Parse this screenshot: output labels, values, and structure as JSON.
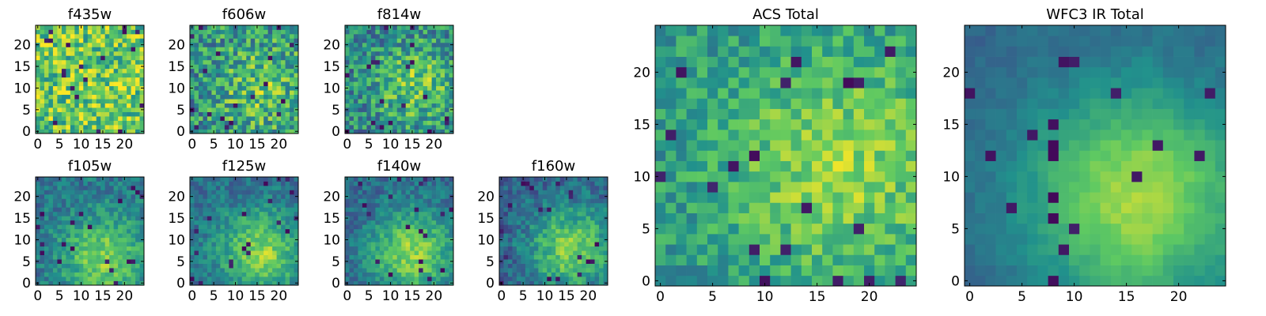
{
  "colormap": {
    "name": "viridis",
    "stops": [
      "#440154",
      "#3b528b",
      "#21918c",
      "#5ec962",
      "#fde725"
    ]
  },
  "chart_data": [
    {
      "type": "heatmap",
      "title": "f435w",
      "grid": false,
      "xlim": [
        -0.5,
        24.5
      ],
      "ylim": [
        -0.5,
        24.5
      ],
      "x_ticks": [
        "0",
        "5",
        "10",
        "15",
        "20"
      ],
      "y_ticks": [
        "0",
        "5",
        "10",
        "15",
        "20"
      ],
      "grid_size": 25,
      "seed": 11,
      "signal": 0.05,
      "noise": 0.55,
      "smooth": 0,
      "offset": 0.72,
      "center": [
        15,
        8
      ],
      "width": 9
    },
    {
      "type": "heatmap",
      "title": "f606w",
      "grid": false,
      "xlim": [
        -0.5,
        24.5
      ],
      "ylim": [
        -0.5,
        24.5
      ],
      "x_ticks": [
        "0",
        "5",
        "10",
        "15",
        "20"
      ],
      "y_ticks": [
        "0",
        "5",
        "10",
        "15",
        "20"
      ],
      "grid_size": 25,
      "seed": 23,
      "signal": 0.22,
      "noise": 0.55,
      "smooth": 0,
      "offset": 0.5,
      "center": [
        16,
        10
      ],
      "width": 8
    },
    {
      "type": "heatmap",
      "title": "f814w",
      "grid": false,
      "xlim": [
        -0.5,
        24.5
      ],
      "ylim": [
        -0.5,
        24.5
      ],
      "x_ticks": [
        "0",
        "5",
        "10",
        "15",
        "20"
      ],
      "y_ticks": [
        "0",
        "5",
        "10",
        "15",
        "20"
      ],
      "grid_size": 25,
      "seed": 37,
      "signal": 0.3,
      "noise": 0.5,
      "smooth": 0,
      "offset": 0.45,
      "center": [
        16,
        11
      ],
      "width": 7
    },
    {
      "type": "heatmap",
      "title": "f105w",
      "grid": false,
      "xlim": [
        -0.5,
        24.5
      ],
      "ylim": [
        -0.5,
        24.5
      ],
      "x_ticks": [
        "0",
        "5",
        "10",
        "15",
        "20"
      ],
      "y_ticks": [
        "0",
        "5",
        "10",
        "15",
        "20"
      ],
      "grid_size": 25,
      "seed": 41,
      "signal": 0.42,
      "noise": 0.38,
      "smooth": 0.3,
      "offset": 0.38,
      "center": [
        15,
        6
      ],
      "width": 7
    },
    {
      "type": "heatmap",
      "title": "f125w",
      "grid": false,
      "xlim": [
        -0.5,
        24.5
      ],
      "ylim": [
        -0.5,
        24.5
      ],
      "x_ticks": [
        "0",
        "5",
        "10",
        "15",
        "20"
      ],
      "y_ticks": [
        "0",
        "5",
        "10",
        "15",
        "20"
      ],
      "grid_size": 25,
      "seed": 53,
      "signal": 0.45,
      "noise": 0.36,
      "smooth": 0.3,
      "offset": 0.36,
      "center": [
        16,
        7
      ],
      "width": 7
    },
    {
      "type": "heatmap",
      "title": "f140w",
      "grid": false,
      "xlim": [
        -0.5,
        24.5
      ],
      "ylim": [
        -0.5,
        24.5
      ],
      "x_ticks": [
        "0",
        "5",
        "10",
        "15",
        "20"
      ],
      "y_ticks": [
        "0",
        "5",
        "10",
        "15",
        "20"
      ],
      "grid_size": 25,
      "seed": 67,
      "signal": 0.48,
      "noise": 0.35,
      "smooth": 0.3,
      "offset": 0.34,
      "center": [
        15,
        7
      ],
      "width": 7
    },
    {
      "type": "heatmap",
      "title": "f160w",
      "grid": false,
      "xlim": [
        -0.5,
        24.5
      ],
      "ylim": [
        -0.5,
        24.5
      ],
      "x_ticks": [
        "0",
        "5",
        "10",
        "15",
        "20"
      ],
      "y_ticks": [
        "0",
        "5",
        "10",
        "15",
        "20"
      ],
      "grid_size": 25,
      "seed": 79,
      "signal": 0.5,
      "noise": 0.38,
      "smooth": 0.3,
      "offset": 0.3,
      "center": [
        16,
        8
      ],
      "width": 7
    },
    {
      "type": "heatmap",
      "title": "ACS Total",
      "grid": false,
      "xlim": [
        -0.5,
        24.5
      ],
      "ylim": [
        -0.5,
        24.5
      ],
      "x_ticks": [
        "0",
        "5",
        "10",
        "15",
        "20"
      ],
      "y_ticks": [
        "0",
        "5",
        "10",
        "15",
        "20"
      ],
      "grid_size": 25,
      "seed": 97,
      "signal": 0.3,
      "noise": 0.32,
      "smooth": 0,
      "offset": 0.52,
      "center": [
        17,
        11
      ],
      "width": 8
    },
    {
      "type": "heatmap",
      "title": "WFC3 IR Total",
      "grid": false,
      "xlim": [
        -0.5,
        24.5
      ],
      "ylim": [
        -0.5,
        24.5
      ],
      "x_ticks": [
        "0",
        "5",
        "10",
        "15",
        "20"
      ],
      "y_ticks": [
        "0",
        "5",
        "10",
        "15",
        "20"
      ],
      "grid_size": 25,
      "seed": 131,
      "signal": 0.55,
      "noise": 0.16,
      "smooth": 0.5,
      "offset": 0.32,
      "center": [
        16,
        8
      ],
      "width": 7.5
    }
  ]
}
